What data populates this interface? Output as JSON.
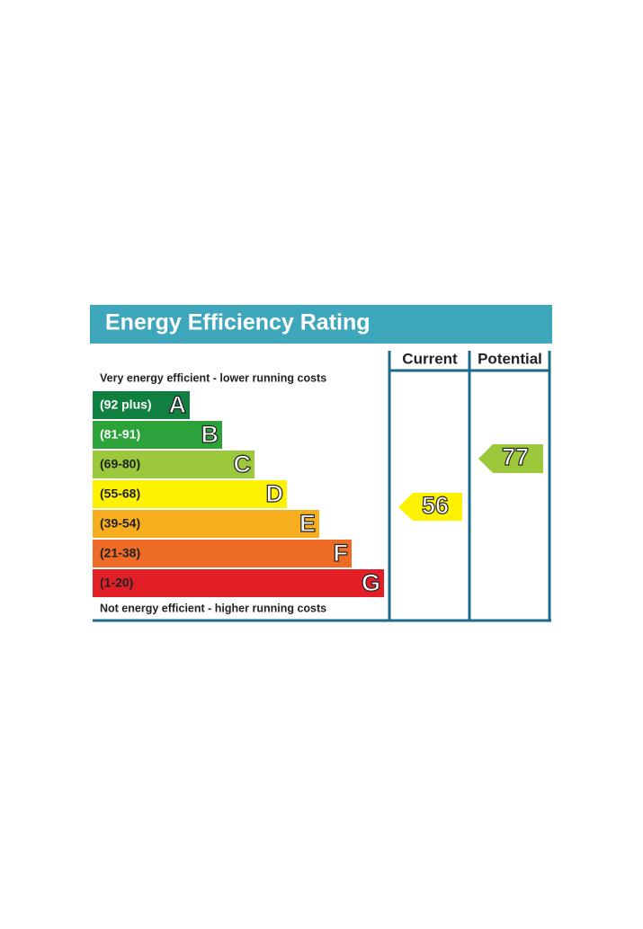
{
  "title": "Energy Efficiency Rating",
  "columns": [
    "Current",
    "Potential"
  ],
  "top_note": "Very energy efficient - lower running costs",
  "bottom_note": "Not energy efficient - higher running costs",
  "bands": [
    {
      "range": "(92 plus)",
      "letter": "A",
      "color": "#0f8040",
      "text_color": "#ffffff"
    },
    {
      "range": "(81-91)",
      "letter": "B",
      "color": "#2ca23a",
      "text_color": "#ffffff"
    },
    {
      "range": "(69-80)",
      "letter": "C",
      "color": "#9cc93c",
      "text_color": "#222222"
    },
    {
      "range": "(55-68)",
      "letter": "D",
      "color": "#fff200",
      "text_color": "#222222"
    },
    {
      "range": "(39-54)",
      "letter": "E",
      "color": "#f6ae1e",
      "text_color": "#222222"
    },
    {
      "range": "(21-38)",
      "letter": "F",
      "color": "#ee6b25",
      "text_color": "#222222"
    },
    {
      "range": "(1-20)",
      "letter": "G",
      "color": "#e21f26",
      "text_color": "#222222"
    }
  ],
  "current": {
    "value": 56,
    "color": "#fff200"
  },
  "potential": {
    "value": 77,
    "color": "#9cc93c"
  }
}
